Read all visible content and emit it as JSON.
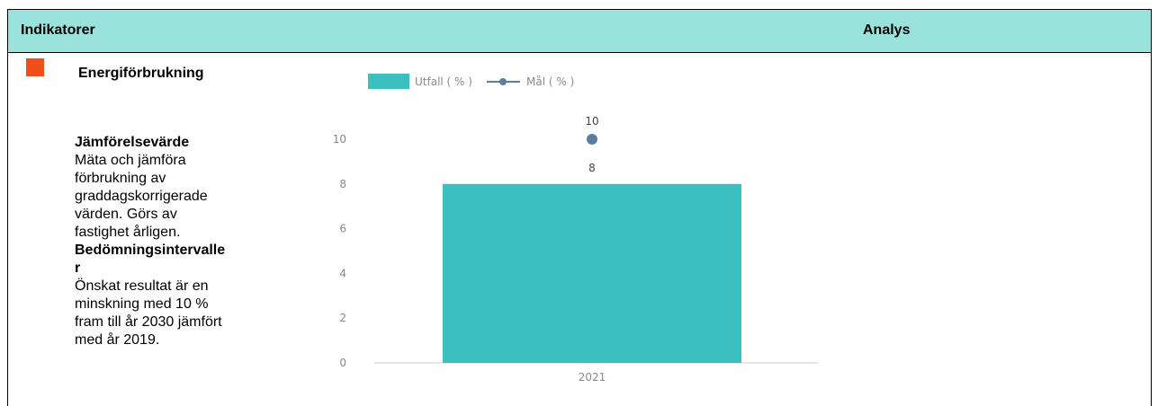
{
  "header": {
    "left_label": "Indikatorer",
    "right_label": "Analys"
  },
  "indicator": {
    "status_color": "#f04e18",
    "title": "Energiförbrukning",
    "section1_heading": "Jämförelsevärde",
    "section1_lines": [
      "Mäta och jämföra",
      "förbrukning av",
      "graddagskorrigerade",
      "värden. Görs av",
      "fastighet årligen."
    ],
    "section2_heading_lines": [
      "Bedömningsintervalle",
      "r"
    ],
    "section2_lines": [
      "Önskat resultat är en",
      "minskning med 10 %",
      "fram till år 2030 jämfört",
      "med år 2019."
    ]
  },
  "chart_data": {
    "type": "bar",
    "categories": [
      "2021"
    ],
    "series": [
      {
        "name": "Utfall ( % )",
        "type": "bar",
        "values": [
          8
        ],
        "color": "#3bbfbf"
      },
      {
        "name": "Mål ( % )",
        "type": "line",
        "values": [
          10
        ],
        "color": "#5b7ea0"
      }
    ],
    "y_ticks": [
      "0",
      "2",
      "4",
      "6",
      "8",
      "10"
    ],
    "ylim": [
      0,
      10
    ],
    "legend": "top-left",
    "grid": false
  }
}
